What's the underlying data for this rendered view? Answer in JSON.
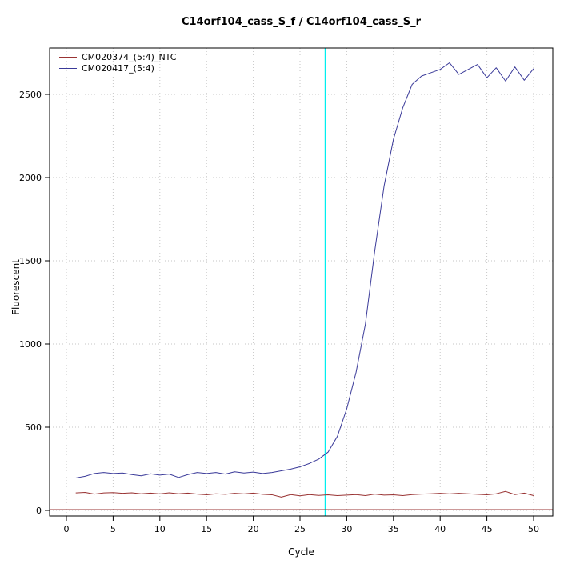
{
  "chart_data": {
    "type": "line",
    "title": "C14orf104_cass_S_f / C14orf104_cass_S_r",
    "xlabel": "Cycle",
    "ylabel": "Fluorescent",
    "xlim": [
      0,
      50
    ],
    "ylim": [
      0,
      2780
    ],
    "x_ticks": [
      0,
      5,
      10,
      15,
      20,
      25,
      30,
      35,
      40,
      45,
      50
    ],
    "y_ticks": [
      0,
      500,
      1000,
      1500,
      2000,
      2500
    ],
    "grid": "dotted",
    "legend_position": "top-left",
    "x": [
      1,
      2,
      3,
      4,
      5,
      6,
      7,
      8,
      9,
      10,
      11,
      12,
      13,
      14,
      15,
      16,
      17,
      18,
      19,
      20,
      21,
      22,
      23,
      24,
      25,
      26,
      27,
      28,
      29,
      30,
      31,
      32,
      33,
      34,
      35,
      36,
      37,
      38,
      39,
      40,
      41,
      42,
      43,
      44,
      45,
      46,
      47,
      48,
      49,
      50
    ],
    "series": [
      {
        "name": "CM020374_(5:4)_NTC",
        "color": "#993333",
        "values": [
          105,
          108,
          98,
          105,
          107,
          103,
          106,
          100,
          104,
          99,
          106,
          100,
          104,
          98,
          94,
          100,
          97,
          103,
          99,
          104,
          97,
          94,
          80,
          95,
          88,
          95,
          90,
          94,
          89,
          92,
          95,
          89,
          98,
          92,
          94,
          89,
          95,
          98,
          100,
          103,
          99,
          103,
          100,
          97,
          94,
          100,
          114,
          95,
          104,
          89
        ]
      },
      {
        "name": "CM020417_(5:4)",
        "color": "#3a3a99",
        "values": [
          195,
          205,
          222,
          228,
          222,
          225,
          215,
          208,
          220,
          212,
          218,
          198,
          215,
          228,
          222,
          228,
          218,
          232,
          225,
          230,
          222,
          228,
          238,
          248,
          262,
          282,
          308,
          350,
          445,
          610,
          830,
          1120,
          1560,
          1950,
          2230,
          2420,
          2560,
          2610,
          2630,
          2650,
          2690,
          2620,
          2650,
          2680,
          2600,
          2660,
          2580,
          2665,
          2585,
          2655
        ]
      }
    ],
    "threshold_line": {
      "y": 5,
      "color": "#993333"
    },
    "ct_line": {
      "x": 27.7,
      "color": "#00eeee"
    },
    "colors": {
      "grid": "#c6c6c6",
      "axis": "#000000",
      "background": "#ffffff"
    }
  }
}
